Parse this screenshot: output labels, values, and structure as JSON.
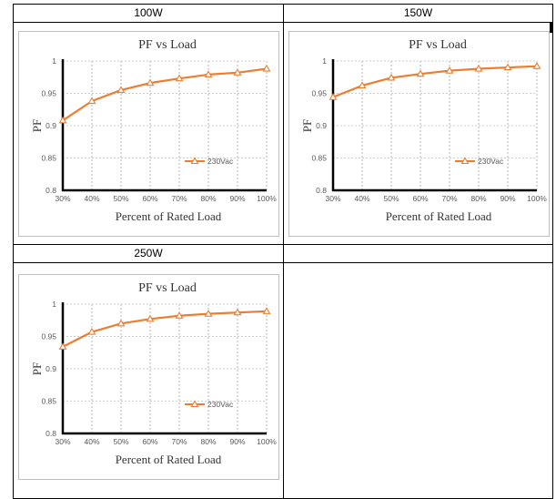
{
  "cells": [
    {
      "header": "100W"
    },
    {
      "header": "150W"
    },
    {
      "header": "250W"
    }
  ],
  "chart_data": [
    {
      "type": "line",
      "title": "PF vs Load",
      "xlabel": "Percent of Rated Load",
      "ylabel": "PF",
      "categories": [
        "30%",
        "40%",
        "50%",
        "60%",
        "70%",
        "80%",
        "90%",
        "100%"
      ],
      "yticks": [
        "0.8",
        "0.85",
        "0.9",
        "0.95",
        "1"
      ],
      "ylim": [
        0.8,
        1.0
      ],
      "grid": "vertical dashed",
      "legend": "right",
      "series": [
        {
          "name": "230Vac",
          "color": "#ed7d31",
          "values": [
            0.908,
            0.938,
            0.955,
            0.966,
            0.973,
            0.979,
            0.982,
            0.988
          ]
        }
      ]
    },
    {
      "type": "line",
      "title": "PF vs Load",
      "xlabel": "Percent of Rated Load",
      "ylabel": "PF",
      "categories": [
        "30%",
        "40%",
        "50%",
        "60%",
        "70%",
        "80%",
        "90%",
        "100%"
      ],
      "yticks": [
        "0.8",
        "0.85",
        "0.9",
        "0.95",
        "1"
      ],
      "ylim": [
        0.8,
        1.0
      ],
      "grid": "vertical dashed",
      "legend": "right",
      "series": [
        {
          "name": "230Vac",
          "color": "#ed7d31",
          "values": [
            0.944,
            0.962,
            0.974,
            0.98,
            0.985,
            0.988,
            0.99,
            0.992
          ]
        }
      ]
    },
    {
      "type": "line",
      "title": "PF vs Load",
      "xlabel": "Percent of Rated Load",
      "ylabel": "PF",
      "categories": [
        "30%",
        "40%",
        "50%",
        "60%",
        "70%",
        "80%",
        "90%",
        "100%"
      ],
      "yticks": [
        "0.8",
        "0.85",
        "0.9",
        "0.95",
        "1"
      ],
      "ylim": [
        0.8,
        1.0
      ],
      "grid": "vertical dashed",
      "legend": "right",
      "series": [
        {
          "name": "230Vac",
          "color": "#ed7d31",
          "values": [
            0.934,
            0.957,
            0.97,
            0.977,
            0.982,
            0.985,
            0.987,
            0.989
          ]
        }
      ]
    }
  ]
}
